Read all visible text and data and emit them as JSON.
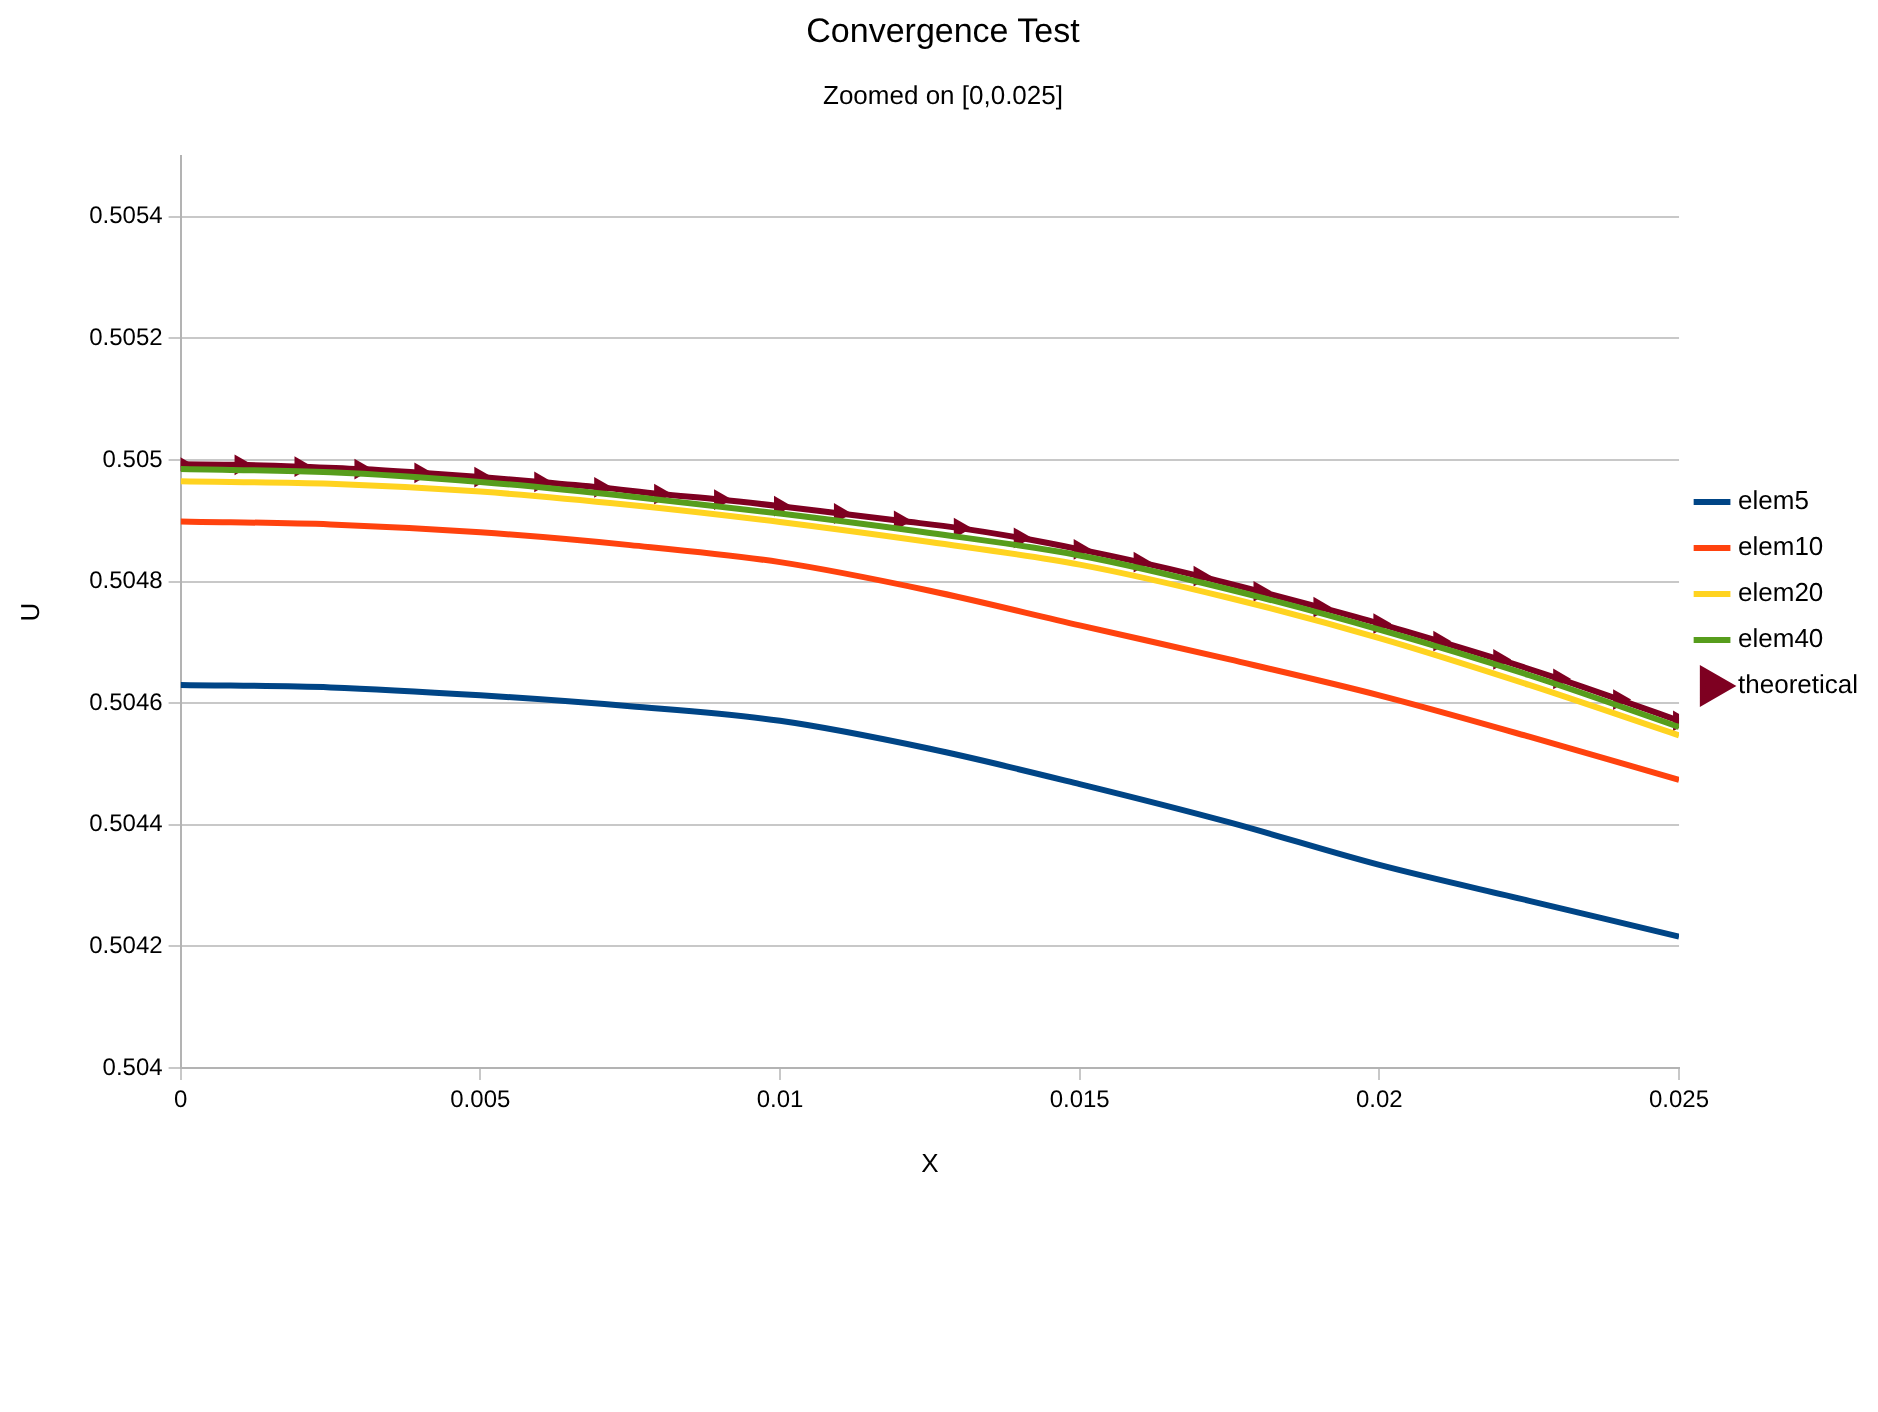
{
  "chart_data": {
    "type": "line",
    "title": "Convergence Test",
    "subtitle": "Zoomed on [0,0.025]",
    "xlabel": "X",
    "ylabel": "U",
    "xlim": [
      0,
      0.025
    ],
    "xticks": [
      0,
      0.005,
      0.01,
      0.015,
      0.02,
      0.025
    ],
    "ylim": [
      0.504,
      0.5055
    ],
    "yticks": [
      0.504,
      0.5042,
      0.5044,
      0.5046,
      0.5048,
      0.505,
      0.5052,
      0.5054
    ],
    "grid": "y",
    "legend": "right",
    "line_style": "solid",
    "series": [
      {
        "name": "elem5",
        "color": "#004586",
        "marker": "none",
        "x": [
          0,
          0.0025,
          0.005,
          0.0075,
          0.01,
          0.0125,
          0.015,
          0.0175,
          0.02,
          0.0225,
          0.025
        ],
        "values": [
          0.50463,
          0.504626,
          0.504613,
          0.504595,
          0.504571,
          0.504525,
          0.504467,
          0.504404,
          0.504334,
          0.504275,
          0.504216
        ]
      },
      {
        "name": "elem10",
        "color": "#ff420e",
        "marker": "none",
        "x": [
          0,
          0.0025,
          0.005,
          0.0075,
          0.01,
          0.0125,
          0.015,
          0.0175,
          0.02,
          0.0225,
          0.025
        ],
        "values": [
          0.504899,
          0.504894,
          0.504881,
          0.50486,
          0.504832,
          0.504785,
          0.504728,
          0.504672,
          0.504613,
          0.504545,
          0.504474
        ]
      },
      {
        "name": "elem20",
        "color": "#ffd320",
        "marker": "none",
        "x": [
          0,
          0.0025,
          0.005,
          0.0075,
          0.01,
          0.0125,
          0.015,
          0.0175,
          0.02,
          0.0225,
          0.025
        ],
        "values": [
          0.504965,
          0.504961,
          0.504948,
          0.504926,
          0.504898,
          0.504865,
          0.504828,
          0.504773,
          0.504707,
          0.50463,
          0.504547
        ]
      },
      {
        "name": "elem40",
        "color": "#579d1c",
        "marker": "none",
        "x": [
          0,
          0.0025,
          0.005,
          0.0075,
          0.01,
          0.0125,
          0.015,
          0.0175,
          0.02,
          0.0225,
          0.025
        ],
        "values": [
          0.504985,
          0.50498,
          0.504964,
          0.50494,
          0.504912,
          0.50488,
          0.504843,
          0.504787,
          0.504721,
          0.504646,
          0.504561
        ]
      },
      {
        "name": "theoretical",
        "color": "#7e0021",
        "marker": "triangle",
        "x": [
          0,
          0.001,
          0.002,
          0.003,
          0.004,
          0.005,
          0.006,
          0.007,
          0.008,
          0.009,
          0.01,
          0.011,
          0.012,
          0.013,
          0.014,
          0.015,
          0.016,
          0.017,
          0.018,
          0.019,
          0.02,
          0.021,
          0.022,
          0.023,
          0.024,
          0.025
        ],
        "values": [
          0.504993,
          0.504992,
          0.504989,
          0.504985,
          0.504979,
          0.504972,
          0.504964,
          0.504955,
          0.504944,
          0.504935,
          0.504924,
          0.504912,
          0.5049,
          0.504888,
          0.504872,
          0.504853,
          0.504832,
          0.504809,
          0.504784,
          0.504758,
          0.504731,
          0.504702,
          0.504672,
          0.50464,
          0.504606,
          0.504571
        ]
      }
    ]
  }
}
